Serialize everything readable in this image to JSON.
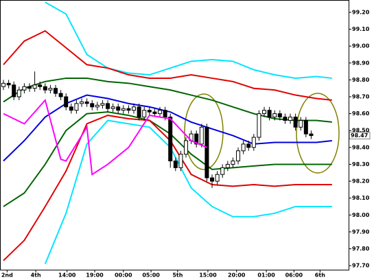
{
  "chart_data": {
    "type": "candlestick",
    "x": [
      0,
      1,
      2,
      3,
      4,
      5,
      6,
      7,
      8,
      9,
      10,
      11,
      12,
      13,
      14,
      15,
      16,
      17,
      18,
      19,
      20,
      21,
      22,
      23,
      24,
      25,
      26,
      27,
      28,
      29,
      30,
      31,
      32,
      33,
      34,
      35,
      36,
      37,
      38,
      39,
      40,
      41,
      42,
      43,
      44,
      45,
      46,
      47,
      48,
      49,
      50,
      51,
      52,
      53,
      54,
      55,
      56,
      57,
      58,
      59
    ],
    "open": [
      98.76,
      98.78,
      98.77,
      98.7,
      98.74,
      98.76,
      98.75,
      98.77,
      98.76,
      98.74,
      98.75,
      98.72,
      98.7,
      98.64,
      98.62,
      98.66,
      98.67,
      98.66,
      98.64,
      98.65,
      98.66,
      98.63,
      98.64,
      98.62,
      98.63,
      98.62,
      98.64,
      98.58,
      98.62,
      98.61,
      98.6,
      98.62,
      98.58,
      98.32,
      98.28,
      98.36,
      98.44,
      98.48,
      98.42,
      98.52,
      98.22,
      98.2,
      98.24,
      98.28,
      98.3,
      98.32,
      98.38,
      98.42,
      98.4,
      98.46,
      98.6,
      98.62,
      98.58,
      98.6,
      98.58,
      98.56,
      98.58,
      98.52,
      98.56,
      98.48
    ],
    "high": [
      98.8,
      98.8,
      98.79,
      98.76,
      98.78,
      98.78,
      98.85,
      98.79,
      98.78,
      98.77,
      98.77,
      98.74,
      98.72,
      98.66,
      98.68,
      98.69,
      98.69,
      98.68,
      98.67,
      98.68,
      98.68,
      98.66,
      98.66,
      98.65,
      98.65,
      98.66,
      98.66,
      98.64,
      98.64,
      98.63,
      98.64,
      98.64,
      98.6,
      98.34,
      98.38,
      98.46,
      98.5,
      98.5,
      98.54,
      98.54,
      98.24,
      98.26,
      98.3,
      98.32,
      98.34,
      98.4,
      98.44,
      98.44,
      98.48,
      98.62,
      98.64,
      98.64,
      98.62,
      98.62,
      98.6,
      98.6,
      98.6,
      98.58,
      98.58,
      98.5
    ],
    "low": [
      98.74,
      98.75,
      98.68,
      98.68,
      98.72,
      98.73,
      98.73,
      98.74,
      98.72,
      98.72,
      98.7,
      98.68,
      98.62,
      98.6,
      98.6,
      98.64,
      98.64,
      98.62,
      98.62,
      98.63,
      98.61,
      98.61,
      98.6,
      98.6,
      98.6,
      98.6,
      98.56,
      98.56,
      98.59,
      98.58,
      98.58,
      98.56,
      98.28,
      98.26,
      98.26,
      98.34,
      98.42,
      98.4,
      98.4,
      98.2,
      98.16,
      98.18,
      98.22,
      98.26,
      98.28,
      98.3,
      98.36,
      98.38,
      98.38,
      98.44,
      98.58,
      98.56,
      98.56,
      98.56,
      98.54,
      98.54,
      98.5,
      98.5,
      98.46,
      98.45
    ],
    "close": [
      98.78,
      98.77,
      98.7,
      98.74,
      98.76,
      98.75,
      98.77,
      98.76,
      98.74,
      98.75,
      98.72,
      98.7,
      98.64,
      98.62,
      98.66,
      98.67,
      98.66,
      98.64,
      98.65,
      98.66,
      98.63,
      98.64,
      98.62,
      98.63,
      98.62,
      98.64,
      98.58,
      98.62,
      98.61,
      98.6,
      98.62,
      98.58,
      98.32,
      98.28,
      98.36,
      98.44,
      98.48,
      98.42,
      98.52,
      98.22,
      98.2,
      98.24,
      98.28,
      98.3,
      98.32,
      98.38,
      98.42,
      98.4,
      98.46,
      98.6,
      98.62,
      98.58,
      98.6,
      98.58,
      98.56,
      98.58,
      98.52,
      98.56,
      98.48,
      98.47
    ],
    "series": [
      {
        "color": "#00e5ff",
        "x": [
          0,
          4,
          8,
          12,
          16,
          20,
          24,
          28,
          32,
          36,
          40,
          44,
          48,
          52,
          56,
          60,
          63
        ],
        "values": [
          null,
          null,
          99.26,
          99.19,
          98.95,
          98.87,
          98.84,
          98.83,
          98.87,
          98.91,
          98.92,
          98.91,
          98.86,
          98.83,
          98.81,
          98.82,
          98.81
        ]
      },
      {
        "color": "#e00000",
        "x": [
          0,
          4,
          8,
          12,
          16,
          20,
          24,
          28,
          32,
          36,
          40,
          44,
          48,
          52,
          56,
          60,
          63
        ],
        "values": [
          98.89,
          99.03,
          99.09,
          98.99,
          98.89,
          98.87,
          98.83,
          98.81,
          98.81,
          98.83,
          98.81,
          98.79,
          98.75,
          98.74,
          98.71,
          98.69,
          98.68
        ]
      },
      {
        "color": "#006400",
        "x": [
          0,
          4,
          8,
          12,
          16,
          20,
          24,
          28,
          32,
          36,
          40,
          44,
          48,
          52,
          56,
          60,
          63
        ],
        "values": [
          98.67,
          98.75,
          98.79,
          98.81,
          98.81,
          98.79,
          98.78,
          98.76,
          98.74,
          98.71,
          98.68,
          98.64,
          98.6,
          98.57,
          98.56,
          98.56,
          98.55
        ]
      },
      {
        "color": "#0000e0",
        "x": [
          0,
          4,
          8,
          12,
          16,
          20,
          24,
          28,
          32,
          36,
          40,
          44,
          48,
          52,
          56,
          60,
          63
        ],
        "values": [
          98.32,
          98.44,
          98.58,
          98.66,
          98.71,
          98.69,
          98.66,
          98.64,
          98.61,
          98.55,
          98.51,
          98.47,
          98.42,
          98.43,
          98.43,
          98.43,
          98.44
        ]
      },
      {
        "color": "#006400",
        "x": [
          0,
          4,
          8,
          12,
          16,
          20,
          24,
          28,
          32,
          36,
          40,
          44,
          48,
          52,
          56,
          60,
          63
        ],
        "values": [
          98.05,
          98.13,
          98.3,
          98.5,
          98.6,
          98.61,
          98.59,
          98.56,
          98.48,
          98.36,
          98.27,
          98.28,
          98.29,
          98.3,
          98.3,
          98.3,
          98.3
        ]
      },
      {
        "color": "#e00000",
        "x": [
          0,
          4,
          8,
          12,
          16,
          20,
          24,
          28,
          32,
          36,
          40,
          44,
          48,
          52,
          56,
          60,
          63
        ],
        "values": [
          97.73,
          97.85,
          98.05,
          98.26,
          98.54,
          98.59,
          98.57,
          98.56,
          98.44,
          98.24,
          98.18,
          98.17,
          98.18,
          98.17,
          98.18,
          98.18,
          98.18
        ]
      },
      {
        "color": "#00e5ff",
        "x": [
          0,
          4,
          8,
          12,
          16,
          20,
          24,
          28,
          32,
          36,
          40,
          44,
          48,
          52,
          56,
          60,
          63
        ],
        "values": [
          null,
          null,
          97.71,
          98.01,
          98.42,
          98.56,
          98.54,
          98.52,
          98.4,
          98.16,
          98.05,
          97.99,
          97.99,
          98.01,
          98.05,
          98.05,
          98.05
        ]
      },
      {
        "color": "#ff00ff",
        "x": [
          0,
          4,
          8,
          11,
          12,
          16,
          17,
          20,
          24,
          28,
          32,
          36,
          39
        ],
        "values": [
          98.6,
          98.54,
          98.68,
          98.33,
          98.32,
          98.52,
          98.24,
          98.3,
          98.4,
          98.59,
          98.57,
          98.44,
          98.4
        ]
      }
    ],
    "last_price": 98.47,
    "xlim": [
      -0.66,
      66.18
    ],
    "ylim": [
      97.676,
      99.273
    ],
    "xticks": [
      {
        "value": 0.7,
        "label": "2nd"
      },
      {
        "value": 6.2,
        "label": "4th"
      },
      {
        "value": 12.2,
        "label": "14:00"
      },
      {
        "value": 17.5,
        "label": "19:00"
      },
      {
        "value": 23,
        "label": "00:00"
      },
      {
        "value": 28.3,
        "label": "05:00"
      },
      {
        "value": 33.4,
        "label": "5th"
      },
      {
        "value": 39.2,
        "label": "15:00"
      },
      {
        "value": 44.7,
        "label": "20:00"
      },
      {
        "value": 50.4,
        "label": "01:00"
      },
      {
        "value": 55.7,
        "label": "06:00"
      },
      {
        "value": 60.7,
        "label": "6th"
      }
    ],
    "yticks": [
      {
        "value": 99.2,
        "label": "99.20"
      },
      {
        "value": 99.1,
        "label": "99.10"
      },
      {
        "value": 99.0,
        "label": "99.00"
      },
      {
        "value": 98.9,
        "label": "98.90"
      },
      {
        "value": 98.8,
        "label": "98.80"
      },
      {
        "value": 98.7,
        "label": "98.70"
      },
      {
        "value": 98.6,
        "label": "98.60"
      },
      {
        "value": 98.5,
        "label": "98.50"
      },
      {
        "value": 98.4,
        "label": "98.40"
      },
      {
        "value": 98.3,
        "label": "98.30"
      },
      {
        "value": 98.2,
        "label": "98.20"
      },
      {
        "value": 98.1,
        "label": "98.10"
      },
      {
        "value": 98.0,
        "label": "98.00"
      },
      {
        "value": 97.9,
        "label": "97.90"
      },
      {
        "value": 97.8,
        "label": "97.80"
      },
      {
        "value": 97.7,
        "label": "97.70"
      }
    ]
  }
}
